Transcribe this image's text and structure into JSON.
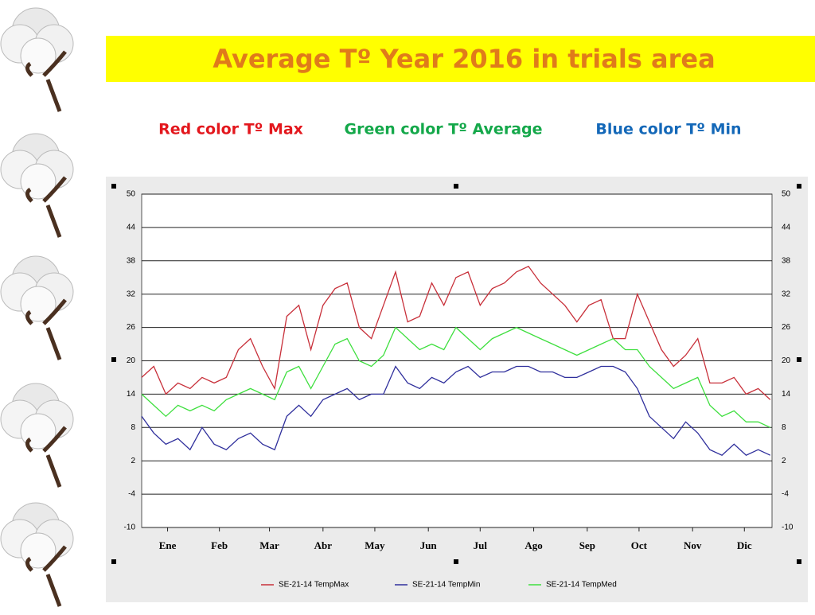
{
  "slide": {
    "title": "Average  Tº Year 2016 in trials area",
    "captions": [
      {
        "text": "Red color Tº Max",
        "color": "#e3171d"
      },
      {
        "text": "Green color Tº Average",
        "color": "#14a84a"
      },
      {
        "text": "Blue color Tº Min",
        "color": "#1468b8"
      }
    ]
  },
  "chart_data": {
    "type": "line",
    "x": [
      1,
      8,
      15,
      22,
      29,
      36,
      43,
      50,
      57,
      64,
      71,
      78,
      85,
      92,
      99,
      106,
      113,
      120,
      127,
      134,
      141,
      148,
      155,
      162,
      169,
      176,
      183,
      190,
      197,
      204,
      211,
      218,
      225,
      232,
      239,
      246,
      253,
      260,
      267,
      274,
      281,
      288,
      295,
      302,
      309,
      316,
      323,
      330,
      337,
      344,
      351,
      358,
      365
    ],
    "xlim": [
      1,
      366
    ],
    "xticks": [
      {
        "value": 16,
        "label": "Ene"
      },
      {
        "value": 46,
        "label": "Feb"
      },
      {
        "value": 75,
        "label": "Mar"
      },
      {
        "value": 106,
        "label": "Abr"
      },
      {
        "value": 136,
        "label": "May"
      },
      {
        "value": 167,
        "label": "Jun"
      },
      {
        "value": 197,
        "label": "Jul"
      },
      {
        "value": 228,
        "label": "Ago"
      },
      {
        "value": 259,
        "label": "Sep"
      },
      {
        "value": 289,
        "label": "Oct"
      },
      {
        "value": 320,
        "label": "Nov"
      },
      {
        "value": 350,
        "label": "Dic"
      }
    ],
    "ylim": [
      -10,
      50
    ],
    "yticks": [
      -10,
      -4,
      2,
      8,
      14,
      20,
      26,
      32,
      38,
      44,
      50
    ],
    "grid": true,
    "legend": "bottom",
    "series": [
      {
        "name": "SE-21-14 TempMax",
        "color": "#c8303a",
        "values": [
          17,
          19,
          14,
          16,
          15,
          17,
          16,
          17,
          22,
          24,
          19,
          15,
          28,
          30,
          22,
          30,
          33,
          34,
          26,
          24,
          30,
          36,
          27,
          28,
          34,
          30,
          35,
          36,
          30,
          33,
          34,
          36,
          37,
          34,
          32,
          30,
          27,
          30,
          31,
          24,
          24,
          32,
          27,
          22,
          19,
          21,
          24,
          16,
          16,
          17,
          14,
          15,
          13
        ]
      },
      {
        "name": "SE-21-14 TempMin",
        "color": "#2f2f9c",
        "values": [
          10,
          7,
          5,
          6,
          4,
          8,
          5,
          4,
          6,
          7,
          5,
          4,
          10,
          12,
          10,
          13,
          14,
          15,
          13,
          14,
          14,
          19,
          16,
          15,
          17,
          16,
          18,
          19,
          17,
          18,
          18,
          19,
          19,
          18,
          18,
          17,
          17,
          18,
          19,
          19,
          18,
          15,
          10,
          8,
          6,
          9,
          7,
          4,
          3,
          5,
          3,
          4,
          3
        ]
      },
      {
        "name": "SE-21-14 TempMed",
        "color": "#3fdf3f",
        "values": [
          14,
          12,
          10,
          12,
          11,
          12,
          11,
          13,
          14,
          15,
          14,
          13,
          18,
          19,
          15,
          19,
          23,
          24,
          20,
          19,
          21,
          26,
          24,
          22,
          23,
          22,
          26,
          24,
          22,
          24,
          25,
          26,
          25,
          24,
          23,
          22,
          21,
          22,
          23,
          24,
          22,
          22,
          19,
          17,
          15,
          16,
          17,
          12,
          10,
          11,
          9,
          9,
          8
        ]
      }
    ]
  }
}
